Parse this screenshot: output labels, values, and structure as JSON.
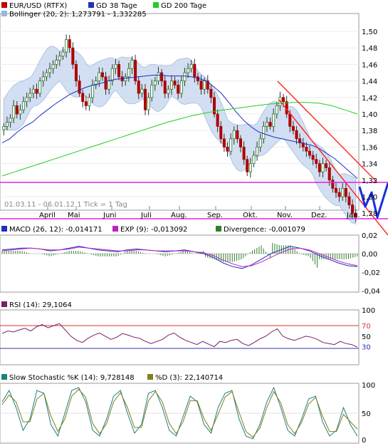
{
  "chart_data": [
    {
      "type": "candlestick",
      "panel": "price",
      "legend": [
        {
          "label": "EUR/USD (RTFX)",
          "color": "#c00000"
        },
        {
          "label": "GD 38 Tage",
          "color": "#1f2fbf"
        },
        {
          "label": "GD 200 Tage",
          "color": "#22cc22"
        },
        {
          "label": "Bollinger (20, 2): 1,273791 - 1,332285",
          "color": "#9bb5de"
        }
      ],
      "range_label": "01.03.11 - 06.01.12   1 Tick = 1 Tag",
      "months": [
        "April",
        "Mai",
        "Juni",
        "Juli",
        "Aug.",
        "Sep.",
        "Okt.",
        "Nov.",
        "Dez.",
        "Jan."
      ],
      "yticks": [
        "1,50",
        "1,48",
        "1,46",
        "1,44",
        "1,42",
        "1,40",
        "1,38",
        "1,36",
        "1,34",
        "1,32",
        "1,30",
        "1,28"
      ],
      "ylim": [
        1.27,
        1.51
      ],
      "close": [
        1.385,
        1.39,
        1.395,
        1.41,
        1.4,
        1.405,
        1.415,
        1.42,
        1.425,
        1.43,
        1.425,
        1.44,
        1.445,
        1.45,
        1.455,
        1.46,
        1.465,
        1.47,
        1.475,
        1.49,
        1.48,
        1.46,
        1.44,
        1.425,
        1.415,
        1.41,
        1.42,
        1.435,
        1.44,
        1.45,
        1.445,
        1.43,
        1.44,
        1.455,
        1.46,
        1.445,
        1.44,
        1.445,
        1.455,
        1.465,
        1.44,
        1.425,
        1.43,
        1.405,
        1.42,
        1.435,
        1.44,
        1.45,
        1.44,
        1.425,
        1.43,
        1.44,
        1.435,
        1.425,
        1.44,
        1.45,
        1.455,
        1.46,
        1.445,
        1.44,
        1.43,
        1.44,
        1.43,
        1.42,
        1.4,
        1.385,
        1.37,
        1.36,
        1.355,
        1.37,
        1.38,
        1.37,
        1.36,
        1.345,
        1.33,
        1.34,
        1.35,
        1.36,
        1.37,
        1.385,
        1.39,
        1.385,
        1.4,
        1.41,
        1.42,
        1.415,
        1.4,
        1.385,
        1.38,
        1.37,
        1.365,
        1.36,
        1.355,
        1.35,
        1.345,
        1.34,
        1.33,
        1.34,
        1.335,
        1.32,
        1.31,
        1.305,
        1.3,
        1.31,
        1.3,
        1.29,
        1.28,
        1.275
      ],
      "gd38": [
        1.365,
        1.37,
        1.378,
        1.385,
        1.39,
        1.398,
        1.405,
        1.412,
        1.418,
        1.424,
        1.428,
        1.432,
        1.435,
        1.437,
        1.44,
        1.442,
        1.443,
        1.444,
        1.445,
        1.446,
        1.447,
        1.447,
        1.446,
        1.446,
        1.446,
        1.445,
        1.443,
        1.44,
        1.433,
        1.425,
        1.414,
        1.402,
        1.392,
        1.384,
        1.378,
        1.375,
        1.372,
        1.37,
        1.368,
        1.366,
        1.364,
        1.362,
        1.358,
        1.352,
        1.346,
        1.338,
        1.33,
        1.322
      ],
      "gd38_step": 2.2,
      "gd200": [
        1.325,
        1.33,
        1.335,
        1.34,
        1.345,
        1.35,
        1.355,
        1.36,
        1.365,
        1.37,
        1.375,
        1.38,
        1.385,
        1.39,
        1.394,
        1.398,
        1.401,
        1.404,
        1.406,
        1.408,
        1.41,
        1.412,
        1.413,
        1.414,
        1.414,
        1.413,
        1.41,
        1.405,
        1.4
      ],
      "gd200_step": 3.7,
      "channel_trendlines": "red",
      "horizontal_lines": [
        1.29,
        1.255
      ]
    },
    {
      "type": "line",
      "panel": "macd",
      "legend": [
        {
          "label": "MACD (26, 12): -0,014171",
          "color": "#1f2fbf"
        },
        {
          "label": "EXP (9): -0,013092",
          "color": "#c020c0"
        },
        {
          "label": "Divergence: -0,001079",
          "color": "#2f7f2f"
        }
      ],
      "yticks": [
        "0,02",
        "0,00",
        "-0,02",
        "-0,04"
      ],
      "ylim": [
        -0.04,
        0.02
      ],
      "macd": [
        0.004,
        0.005,
        0.006,
        0.006,
        0.005,
        0.003,
        0.004,
        0.006,
        0.008,
        0.006,
        0.004,
        0.003,
        0.002,
        0.004,
        0.005,
        0.004,
        0.003,
        0.002,
        0.003,
        0.004,
        0.002,
        0.0,
        -0.004,
        -0.01,
        -0.014,
        -0.016,
        -0.012,
        -0.006,
        0.0,
        0.004,
        0.008,
        0.006,
        0.003,
        -0.002,
        -0.006,
        -0.01,
        -0.013,
        -0.014
      ],
      "exp": [
        0.003,
        0.004,
        0.005,
        0.006,
        0.005,
        0.004,
        0.004,
        0.005,
        0.007,
        0.006,
        0.005,
        0.004,
        0.003,
        0.003,
        0.004,
        0.004,
        0.003,
        0.003,
        0.003,
        0.003,
        0.002,
        0.001,
        -0.002,
        -0.007,
        -0.011,
        -0.014,
        -0.013,
        -0.009,
        -0.004,
        0.001,
        0.005,
        0.006,
        0.004,
        0.0,
        -0.004,
        -0.008,
        -0.011,
        -0.013
      ]
    },
    {
      "type": "line",
      "panel": "rsi",
      "legend": [
        {
          "label": "RSI (14): 29,1064",
          "color": "#7a1f5f"
        }
      ],
      "yticks": [
        "100",
        "70",
        "50",
        "30"
      ],
      "levels": [
        70,
        30
      ],
      "ylim": [
        0,
        100
      ],
      "rsi": [
        55,
        60,
        58,
        62,
        65,
        60,
        68,
        72,
        66,
        70,
        74,
        62,
        50,
        42,
        38,
        46,
        52,
        56,
        50,
        44,
        48,
        55,
        52,
        48,
        46,
        40,
        36,
        40,
        44,
        52,
        56,
        48,
        42,
        38,
        34,
        40,
        35,
        30,
        40,
        38,
        42,
        44,
        36,
        32,
        38,
        45,
        50,
        58,
        64,
        50,
        45,
        42,
        46,
        50,
        48,
        44,
        38,
        36,
        34,
        40,
        36,
        34,
        29
      ]
    },
    {
      "type": "line",
      "panel": "stochastic",
      "legend": [
        {
          "label": "Slow Stochastic %K (14): 9,728148",
          "color": "#1f7f7f"
        },
        {
          "label": "%D (3): 22,140714",
          "color": "#7f7f1f"
        }
      ],
      "yticks": [
        "100",
        "50",
        "0"
      ],
      "ylim": [
        0,
        100
      ],
      "k": [
        70,
        90,
        60,
        20,
        40,
        90,
        85,
        30,
        10,
        50,
        90,
        95,
        70,
        20,
        10,
        40,
        80,
        90,
        50,
        15,
        30,
        85,
        90,
        60,
        20,
        10,
        45,
        80,
        70,
        30,
        15,
        60,
        85,
        90,
        40,
        10,
        5,
        30,
        70,
        95,
        60,
        20,
        10,
        40,
        75,
        80,
        35,
        10,
        20,
        60,
        30,
        10
      ],
      "d": [
        65,
        82,
        70,
        35,
        35,
        75,
        85,
        45,
        18,
        40,
        80,
        92,
        78,
        32,
        14,
        32,
        70,
        86,
        60,
        25,
        25,
        72,
        88,
        70,
        32,
        14,
        36,
        72,
        72,
        40,
        20,
        48,
        78,
        88,
        52,
        18,
        8,
        24,
        60,
        88,
        68,
        30,
        14,
        34,
        66,
        78,
        45,
        18,
        18,
        48,
        35,
        22
      ]
    }
  ]
}
